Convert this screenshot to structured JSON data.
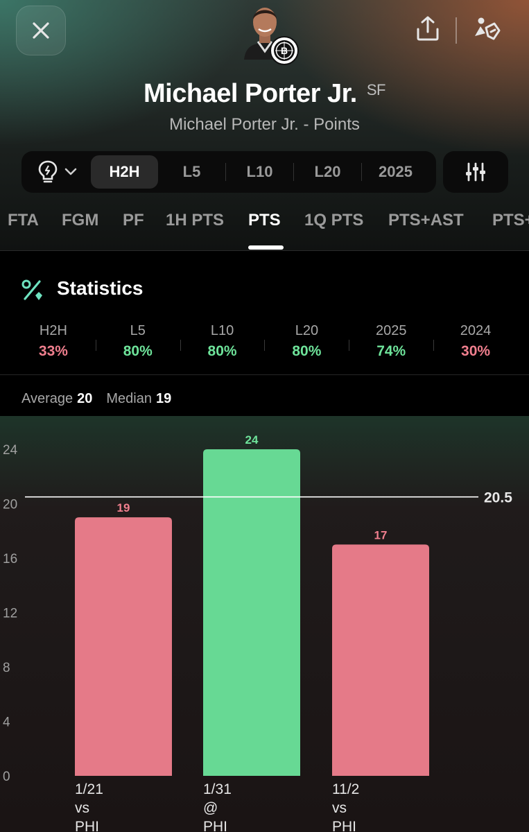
{
  "header": {
    "player_name": "Michael Porter Jr.",
    "position": "SF",
    "subtitle": "Michael Porter Jr. - Points"
  },
  "icons": {
    "close": "close-icon",
    "share": "share-icon",
    "tools": "tools-icon",
    "insight": "lightbulb-icon",
    "filter": "sliders-icon",
    "stats": "percent-icon"
  },
  "segments": {
    "items": [
      "H2H",
      "L5",
      "L10",
      "L20",
      "2025"
    ],
    "active": "H2H"
  },
  "stat_tabs": {
    "items": [
      "FTA",
      "FGM",
      "PF",
      "1H PTS",
      "PTS",
      "1Q PTS",
      "PTS+AST",
      "PTS+"
    ],
    "active": "PTS"
  },
  "statistics": {
    "title": "Statistics",
    "splits": [
      {
        "label": "H2H",
        "value": "33%",
        "status": "under"
      },
      {
        "label": "L5",
        "value": "80%",
        "status": "over"
      },
      {
        "label": "L10",
        "value": "80%",
        "status": "over"
      },
      {
        "label": "L20",
        "value": "80%",
        "status": "over"
      },
      {
        "label": "2025",
        "value": "74%",
        "status": "over"
      },
      {
        "label": "2024",
        "value": "30%",
        "status": "under"
      }
    ]
  },
  "summary": {
    "average_label": "Average",
    "average_value": "20",
    "median_label": "Median",
    "median_value": "19"
  },
  "colors": {
    "over": "#67d994",
    "under": "#e57a88",
    "over_text": "#6ee39a",
    "under_text": "#f07f8e"
  },
  "chart_data": {
    "type": "bar",
    "categories": [
      [
        "1/21",
        "vs",
        "PHI"
      ],
      [
        "1/31",
        "@",
        "PHI"
      ],
      [
        "11/2",
        "vs",
        "PHI"
      ]
    ],
    "values": [
      19,
      24,
      17
    ],
    "line": 20.5,
    "line_label": "20.5",
    "yticks": [
      0,
      4,
      8,
      12,
      16,
      20,
      24
    ],
    "ylim": [
      0,
      24
    ],
    "grid": false
  }
}
